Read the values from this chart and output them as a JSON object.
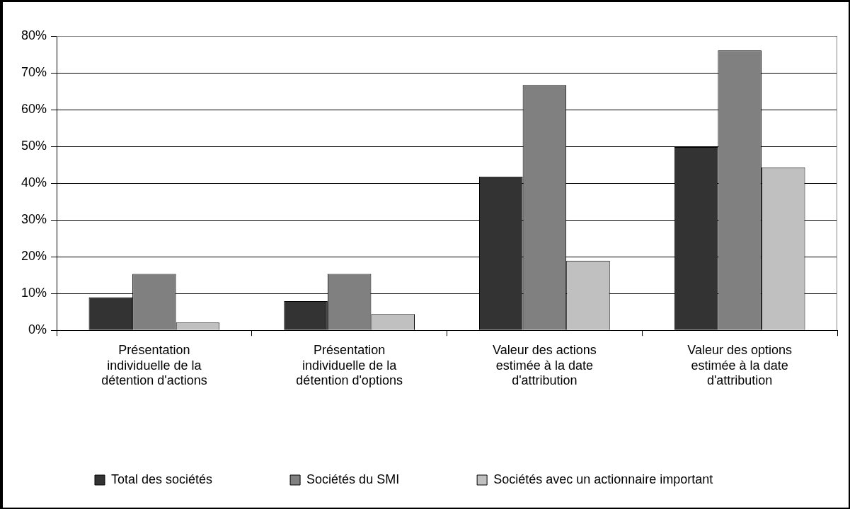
{
  "chart_data": {
    "type": "bar",
    "categories": [
      "Présentation individuelle de la détention d'actions",
      "Présentation individuelle de la détention d'options",
      "Valeur des actions estimée à la date d'attribution",
      "Valeur des options estimée à la date d'attribution"
    ],
    "series": [
      {
        "name": "Total des sociétés",
        "color": "#333333",
        "values": [
          9,
          7.9,
          41.8,
          49.8
        ]
      },
      {
        "name": "Sociétés du SMI",
        "color": "#808080",
        "values": [
          15.3,
          15.3,
          66.7,
          76.1
        ]
      },
      {
        "name": "Sociétés avec un actionnaire important",
        "color": "#c0c0c0",
        "values": [
          2.1,
          4.4,
          18.9,
          44.3
        ]
      }
    ],
    "ylim": [
      0,
      80
    ],
    "yticks": [
      {
        "value": 0,
        "label": "0%"
      },
      {
        "value": 10,
        "label": "10%"
      },
      {
        "value": 20,
        "label": "20%"
      },
      {
        "value": 30,
        "label": "30%"
      },
      {
        "value": 40,
        "label": "40%"
      },
      {
        "value": 50,
        "label": "50%"
      },
      {
        "value": 60,
        "label": "60%"
      },
      {
        "value": 70,
        "label": "70%"
      },
      {
        "value": 80,
        "label": "80%"
      }
    ],
    "grid": "y",
    "legend": "bottom"
  }
}
